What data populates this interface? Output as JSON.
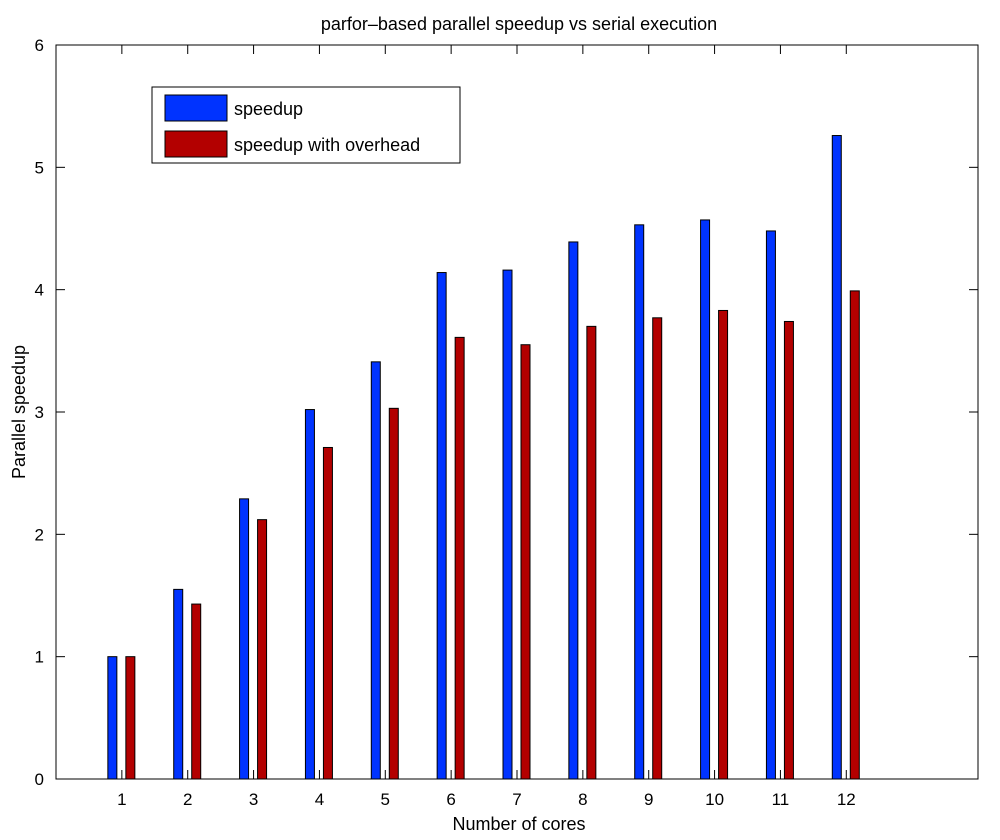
{
  "chart_data": {
    "type": "bar",
    "title": "parfor–based parallel speedup vs serial execution",
    "xlabel": "Number of cores",
    "ylabel": "Parallel speedup",
    "categories": [
      "1",
      "2",
      "3",
      "4",
      "5",
      "6",
      "7",
      "8",
      "9",
      "10",
      "11",
      "12"
    ],
    "xlim": [
      0,
      14
    ],
    "ylim": [
      0,
      6
    ],
    "yticks": [
      0,
      1,
      2,
      3,
      4,
      5,
      6
    ],
    "grid": false,
    "legend_position": "top-left",
    "series": [
      {
        "name": "speedup",
        "color": "#0033ff",
        "values": [
          1.0,
          1.55,
          2.29,
          3.02,
          3.41,
          4.14,
          4.16,
          4.39,
          4.53,
          4.57,
          4.48,
          5.26
        ]
      },
      {
        "name": "speedup with overhead",
        "color": "#b30000",
        "values": [
          1.0,
          1.43,
          2.12,
          2.71,
          3.03,
          3.61,
          3.55,
          3.7,
          3.77,
          3.83,
          3.74,
          3.99
        ]
      }
    ]
  }
}
